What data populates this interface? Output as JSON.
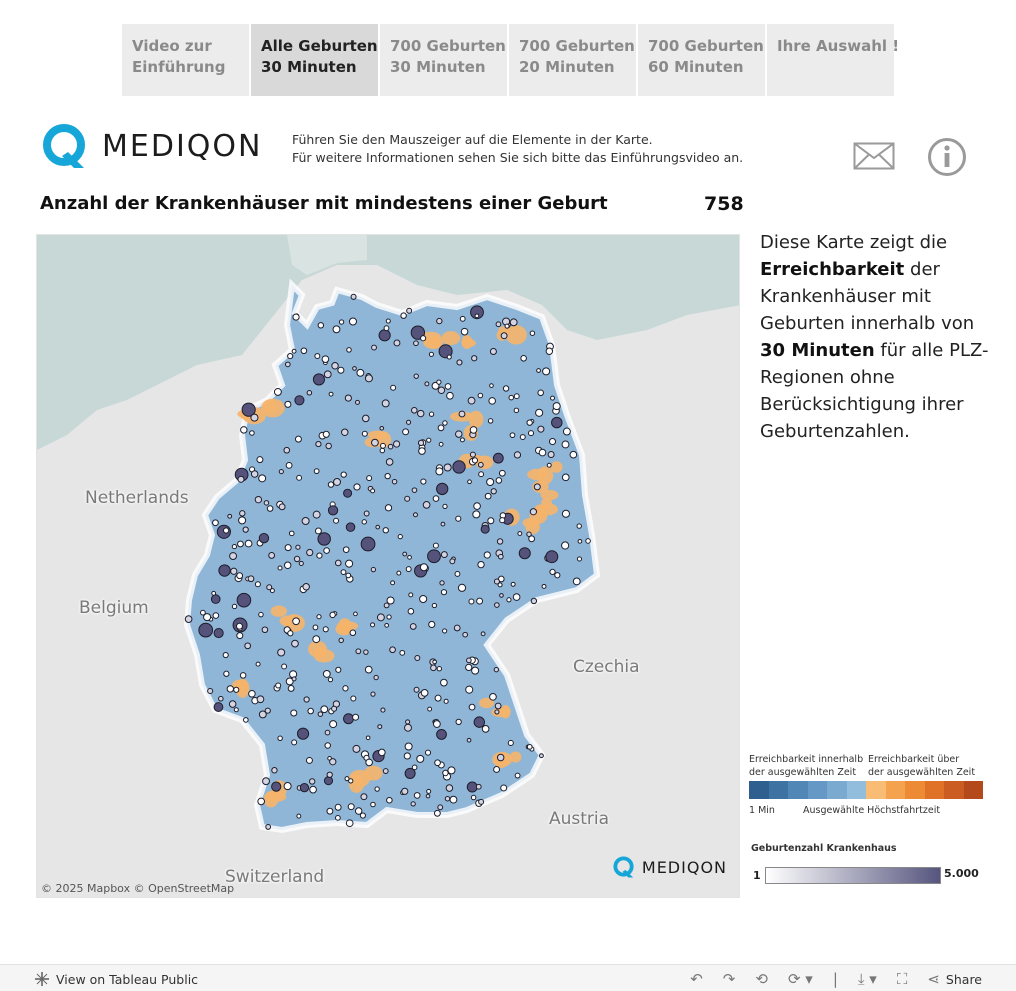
{
  "tabs": [
    {
      "line1": "Video zur",
      "line2": "Einführung",
      "active": false
    },
    {
      "line1": "Alle Geburten",
      "line2": "30 Minuten",
      "active": true
    },
    {
      "line1": "700 Geburten",
      "line2": "30 Minuten",
      "active": false
    },
    {
      "line1": "700 Geburten",
      "line2": "20 Minuten",
      "active": false
    },
    {
      "line1": "700 Geburten",
      "line2": "60 Minuten",
      "active": false
    },
    {
      "line1": "Ihre Auswahl !",
      "line2": "",
      "active": false
    }
  ],
  "header": {
    "logo_text": "MEDIQON",
    "hint_line1": "Führen Sie den Mauszeiger auf die Elemente in der Karte.",
    "hint_line2": "Für weitere Informationen sehen Sie sich bitte das Einführungsvideo an.",
    "mail_icon": "mail-icon",
    "info_icon": "info-icon"
  },
  "kpi": {
    "title": "Anzahl der Krankenhäuser mit mindestens einer Geburt",
    "value": "758"
  },
  "map": {
    "labels": {
      "netherlands": "Netherlands",
      "belgium": "Belgium",
      "czechia": "Czechia",
      "austria": "Austria",
      "switzerland": "Switzerland"
    },
    "attribution": "© 2025 Mapbox  © OpenStreetMap",
    "watermark": "MEDIQON",
    "colors": {
      "water": "#c7d8d7",
      "land": "#e6e6e6",
      "region_fill": "#8fb6d6",
      "region_dark": "#6f9cc6",
      "region_over": "#f6b46a",
      "hospital": "#55537b"
    }
  },
  "description": {
    "p1": "Diese Karte zeigt die",
    "b1": "Erreichbarkeit",
    "p2": "der Krankenhäuser mit Geburten innerhalb von",
    "b2": "30 Minuten",
    "p3": "für alle PLZ-Regionen ohne Berücksichtigung ihrer Geburtenzahlen."
  },
  "legend_reach": {
    "left_l1": "Erreichbarkeit innerhalb",
    "left_l2": "der ausgewählten Zeit",
    "right_l1": "Erreichbarkeit über",
    "right_l2": "der ausgewählten Zeit",
    "min": "1 Min",
    "mid": "Ausgewählte Höchstfahrtzeit",
    "colors": [
      "#2e5f8e",
      "#3e72a3",
      "#5187b6",
      "#6598c4",
      "#7baad0",
      "#93bddc",
      "#f9bc74",
      "#f4a24e",
      "#ec8a36",
      "#df7227",
      "#cc5d22",
      "#b44a1c"
    ]
  },
  "legend_births": {
    "title": "Geburtenzahl Krankenhaus",
    "min": "1",
    "max": "5.000"
  },
  "footer": {
    "view_label": "View on Tableau Public",
    "share_label": "Share"
  }
}
